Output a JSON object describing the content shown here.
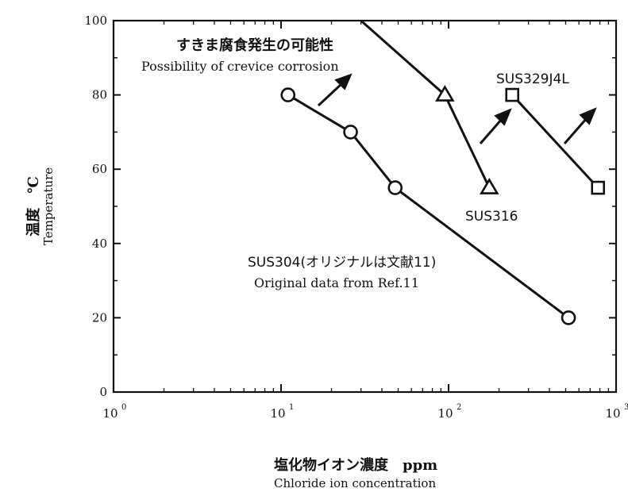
{
  "chart_data": {
    "type": "line",
    "x_scale": "log",
    "xlim": [
      1,
      1000
    ],
    "ylim": [
      0,
      100
    ],
    "x_ticks": [
      1,
      10,
      100,
      1000
    ],
    "x_tick_labels": [
      {
        "base": "10",
        "exp": "0"
      },
      {
        "base": "10",
        "exp": "1"
      },
      {
        "base": "10",
        "exp": "2"
      },
      {
        "base": "10",
        "exp": "3"
      }
    ],
    "y_ticks": [
      0,
      20,
      40,
      60,
      80,
      100
    ],
    "y_tick_labels": [
      "0",
      "20",
      "40",
      "60",
      "80",
      "100"
    ],
    "xlabel_jp": "塩化物イオン濃度　ppm",
    "xlabel_en": "Chloride ion concentration",
    "ylabel_jp": "温度　℃",
    "ylabel_en": "Temperature",
    "grid": false,
    "series": [
      {
        "name": "SUS304(オリジナルは文献11)",
        "subtitle": "Original data from Ref.11",
        "marker": "circle",
        "x": [
          11,
          26,
          48,
          520
        ],
        "y": [
          80,
          70,
          55,
          20
        ]
      },
      {
        "name": "SUS316",
        "marker": "triangle",
        "x": [
          30,
          95,
          175
        ],
        "y": [
          100,
          80,
          55
        ]
      },
      {
        "name": "SUS329J4L",
        "marker": "square",
        "x": [
          240,
          780
        ],
        "y": [
          80,
          55
        ]
      }
    ],
    "annotation": {
      "text_jp": "すきま腐食発生の可能性",
      "text_en": "Possibility of crevice corrosion"
    }
  }
}
